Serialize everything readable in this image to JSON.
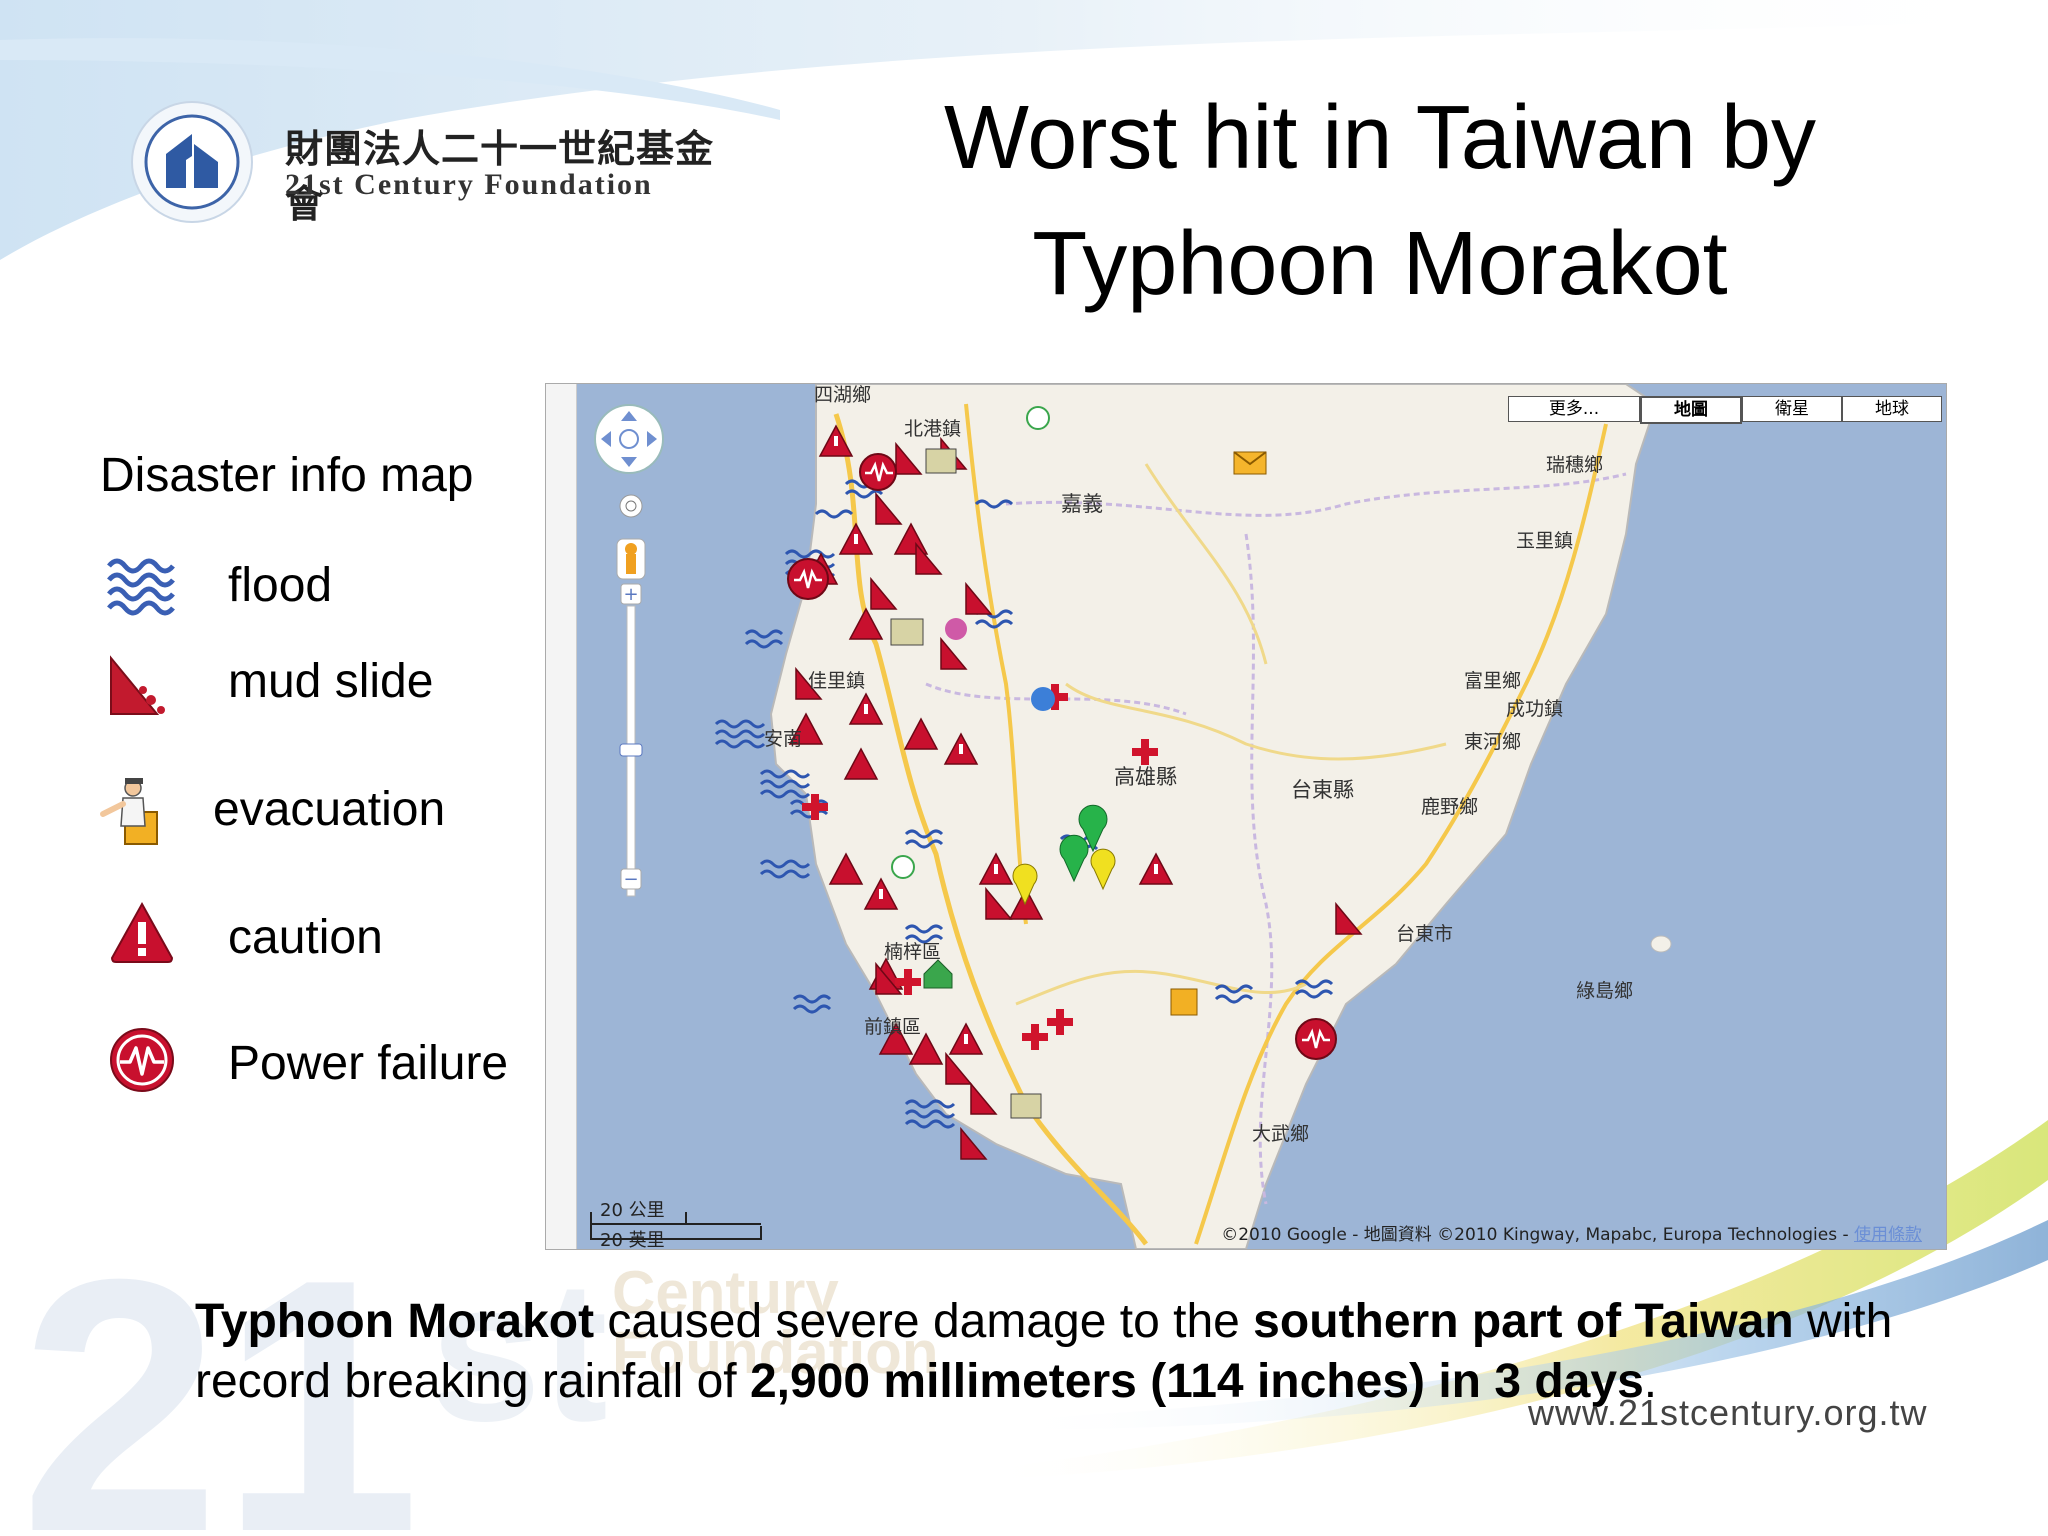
{
  "logo": {
    "org_cn": "財團法人二十一世紀基金會",
    "org_en": "21st Century  Foundation",
    "icon": "foundation-emblem"
  },
  "title": {
    "line1": "Worst hit in Taiwan by",
    "line2": "Typhoon Morakot"
  },
  "legend": {
    "heading": "Disaster info map",
    "items": [
      {
        "icon": "flood-icon",
        "label": "flood"
      },
      {
        "icon": "mud-slide-icon",
        "label": "mud slide"
      },
      {
        "icon": "evacuation-icon",
        "label": "evacuation"
      },
      {
        "icon": "caution-icon",
        "label": "caution"
      },
      {
        "icon": "power-failure-icon",
        "label": "Power failure"
      }
    ]
  },
  "map": {
    "map_types": [
      "更多...",
      "地圖",
      "衛星",
      "地球"
    ],
    "selected_map_type": "地圖",
    "scale": {
      "metric": "20 公里",
      "imperial": "20 英里"
    },
    "copyright": "©2010 Google - 地圖資料 ©2010 Kingway, Mapabc, Europa Technologies - ",
    "terms": "使用條款",
    "places": {
      "beigang": "北港鎮",
      "chiayi": "嘉義",
      "ruisui": "瑞穗鄉",
      "yuli": "玉里鎮",
      "jiali": "佳里鎮",
      "fuli": "富里鄉",
      "chenggong": "成功鎮",
      "donghe": "東河鄉",
      "annan": "安南",
      "kaohsiung_county": "高雄縣",
      "taitung_county": "台東縣",
      "luye": "鹿野鄉",
      "nanzi": "楠梓區",
      "taitung_city": "台東市",
      "green_island": "綠島鄉",
      "qianzhen": "前鎮區",
      "dawu": "大武鄉",
      "top_left": "四湖鄉"
    },
    "colors": {
      "sea": "#9db5d6",
      "land": "#f3f0e8",
      "marker_red": "#c8102e"
    }
  },
  "caption": {
    "p1_bold": "Typhoon Morakot",
    "p2": " caused severe damage to the ",
    "p3_bold": "southern part of Taiwan",
    "p4": " with record breaking rainfall of ",
    "p5_bold": "2,900 millimeters (114 inches) in 3 days",
    "p6": "."
  },
  "watermark": {
    "line1": "Century",
    "line2": "Foundation"
  },
  "website": "www.21stcentury.org.tw"
}
